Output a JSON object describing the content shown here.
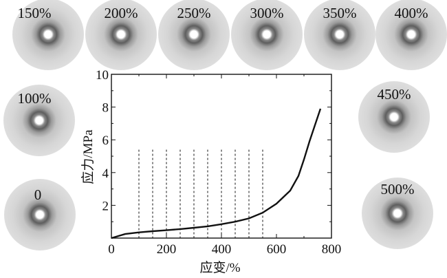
{
  "chart_data": {
    "type": "line",
    "title": "",
    "xlabel": "应变/%",
    "ylabel": "应力/MPa",
    "xlim": [
      0,
      800
    ],
    "ylim": [
      0,
      10
    ],
    "xticks": [
      "0",
      "200",
      "400",
      "600",
      "800"
    ],
    "yticks": [
      "2",
      "4",
      "6",
      "8",
      "10"
    ],
    "grid": false,
    "series": [
      {
        "x": [
          0,
          50,
          100,
          150,
          200,
          250,
          300,
          350,
          400,
          450,
          500,
          550,
          600,
          650,
          680,
          700,
          720,
          740,
          760
        ],
        "values": [
          0.0,
          0.25,
          0.35,
          0.42,
          0.48,
          0.55,
          0.63,
          0.72,
          0.85,
          1.0,
          1.2,
          1.55,
          2.1,
          2.9,
          3.8,
          4.8,
          5.9,
          6.9,
          7.9
        ]
      }
    ],
    "reference_lines_x": [
      100,
      150,
      200,
      250,
      300,
      350,
      400,
      450,
      500,
      550
    ],
    "reference_line_style": "dashed"
  },
  "patterns": [
    {
      "label": "150%"
    },
    {
      "label": "200%"
    },
    {
      "label": "250%"
    },
    {
      "label": "300%"
    },
    {
      "label": "350%"
    },
    {
      "label": "400%"
    },
    {
      "label": "100%"
    },
    {
      "label": "450%"
    },
    {
      "label": "0"
    },
    {
      "label": "500%"
    }
  ],
  "colors": {
    "curve": "#111111",
    "pattern_outer": "#d8d8d8",
    "pattern_ring": "#6e6e6e",
    "pattern_center": "#ffffff"
  }
}
